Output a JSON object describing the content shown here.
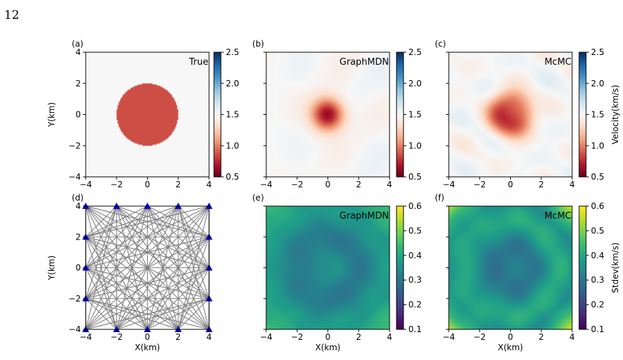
{
  "page_number": "12",
  "figure": {
    "panels": [
      {
        "id": "a",
        "letter": "(a)",
        "kind": "velocity",
        "title": "True",
        "model": "true"
      },
      {
        "id": "b",
        "letter": "(b)",
        "kind": "velocity",
        "title": "GraphMDN",
        "model": "graph_mean"
      },
      {
        "id": "c",
        "letter": "(c)",
        "kind": "velocity",
        "title": "McMC",
        "model": "mcmc_mean"
      },
      {
        "id": "d",
        "letter": "(d)",
        "kind": "network",
        "title": "",
        "model": "network"
      },
      {
        "id": "e",
        "letter": "(e)",
        "kind": "stdev",
        "title": "GraphMDN",
        "model": "graph_std"
      },
      {
        "id": "f",
        "letter": "(f)",
        "kind": "stdev",
        "title": "McMC",
        "model": "mcmc_std"
      }
    ],
    "ylabel": "Y(km)",
    "xlabel": "X(km)",
    "axis_ticks": [
      "−4",
      "−2",
      "0",
      "2",
      "4"
    ],
    "axis_tick_values": [
      -4,
      -2,
      0,
      2,
      4
    ],
    "velocity_colorbar": {
      "label": "Velocity(km/s)",
      "min": 0.5,
      "max": 2.5,
      "ticks": [
        "0.5",
        "1.0",
        "1.5",
        "2.0",
        "2.5"
      ],
      "cmap": "RdBu"
    },
    "stdev_colorbar": {
      "label": "Stdev(km/s)",
      "min": 0.1,
      "max": 0.6,
      "ticks": [
        "0.1",
        "0.2",
        "0.3",
        "0.4",
        "0.5",
        "0.6"
      ],
      "cmap": "viridis"
    },
    "true_model": {
      "background_velocity": 1.5,
      "anomaly_velocity": 0.85,
      "anomaly_center": [
        0,
        0
      ],
      "anomaly_radius_km": 2
    },
    "network": {
      "station_coords_km": [
        -4,
        -2,
        0,
        2,
        4
      ],
      "station_color": "#0000cc",
      "ray_color": "#808080"
    }
  }
}
